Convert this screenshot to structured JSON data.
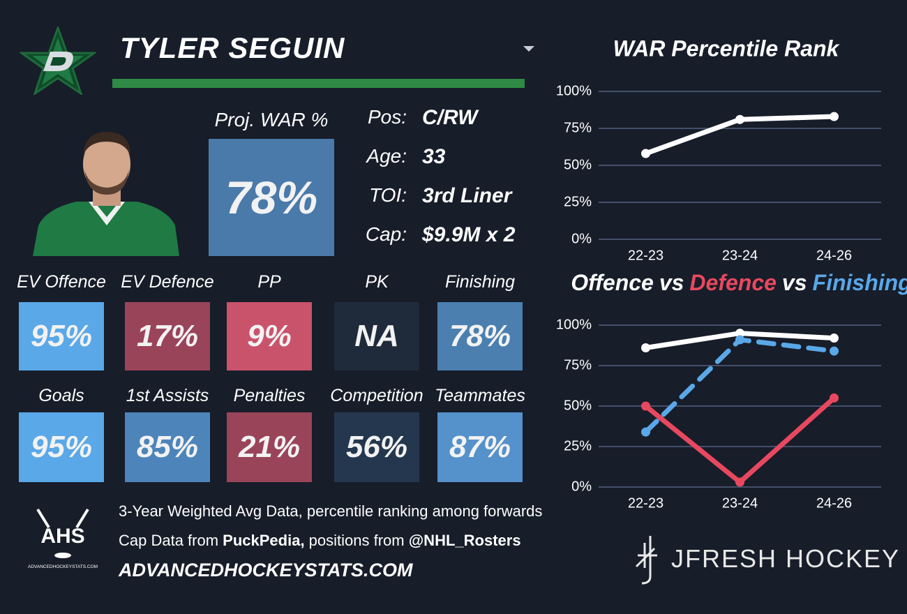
{
  "header": {
    "player": "TYLER SEGUIN"
  },
  "projection": {
    "label": "Proj. WAR %",
    "value": "78%",
    "color": "#4a7aaa"
  },
  "info": [
    {
      "label": "Pos:",
      "value": "C/RW"
    },
    {
      "label": "Age:",
      "value": "33"
    },
    {
      "label": "TOI:",
      "value": "3rd Liner"
    },
    {
      "label": "Cap:",
      "value": "$9.9M x 2"
    }
  ],
  "tiles": [
    [
      {
        "label": "EV Offence",
        "value": "95%",
        "color": "#5aa8e8"
      },
      {
        "label": "EV Defence",
        "value": "17%",
        "color": "#9a4459"
      },
      {
        "label": "PP",
        "value": "9%",
        "color": "#c9536b"
      },
      {
        "label": "PK",
        "value": "NA",
        "color": "#1f2b3b"
      },
      {
        "label": "Finishing",
        "value": "78%",
        "color": "#4a7fb0"
      }
    ],
    [
      {
        "label": "Goals",
        "value": "95%",
        "color": "#5aa8e8"
      },
      {
        "label": "1st Assists",
        "value": "85%",
        "color": "#4d85bb"
      },
      {
        "label": "Penalties",
        "value": "21%",
        "color": "#9a4459"
      },
      {
        "label": "Competition",
        "value": "56%",
        "color": "#24374e"
      },
      {
        "label": "Teammates",
        "value": "87%",
        "color": "#5591cb"
      }
    ]
  ],
  "footer": {
    "logo_text": "AHS",
    "site": "ADVANCEDHOCKEYSTATS.COM",
    "lines": [
      [
        {
          "text": "3-Year Weighted Avg Data, percentile ranking among forwards",
          "bold": false
        }
      ],
      [
        {
          "text": "Cap Data from ",
          "bold": false
        },
        {
          "text": "PuckPedia,",
          "bold": true
        },
        {
          "text": " positions from ",
          "bold": false
        },
        {
          "text": "@NHL_Rosters",
          "bold": true
        }
      ]
    ],
    "brand": "JFRESH HOCKEY"
  },
  "chart_data": [
    {
      "type": "line",
      "title": "WAR Percentile Rank",
      "categories": [
        "22-23",
        "23-24",
        "24-26"
      ],
      "values": [
        58,
        81,
        83
      ],
      "color": "#ffffff",
      "ylim": [
        0,
        100
      ],
      "yticks": [
        {
          "value": 0,
          "label": "0%"
        },
        {
          "value": 25,
          "label": "25%"
        },
        {
          "value": 50,
          "label": "50%"
        },
        {
          "value": 75,
          "label": "75%"
        },
        {
          "value": 100,
          "label": "100%"
        }
      ],
      "grid": true
    },
    {
      "type": "line",
      "title_connector": "vs",
      "categories": [
        "22-23",
        "23-24",
        "24-26"
      ],
      "series": [
        {
          "name": "Offence",
          "color": "#ffffff",
          "values": [
            86,
            95,
            92
          ],
          "dashed": false
        },
        {
          "name": "Defence",
          "color": "#e8485f",
          "values": [
            50,
            3,
            55
          ],
          "dashed": false
        },
        {
          "name": "Finishing",
          "color": "#5aa8e8",
          "values": [
            34,
            91,
            84
          ],
          "dashed": true
        }
      ],
      "ylim": [
        0,
        100
      ],
      "yticks": [
        {
          "value": 0,
          "label": "0%"
        },
        {
          "value": 25,
          "label": "25%"
        },
        {
          "value": 50,
          "label": "50%"
        },
        {
          "value": 75,
          "label": "75%"
        },
        {
          "value": 100,
          "label": "100%"
        }
      ],
      "grid": true
    }
  ]
}
